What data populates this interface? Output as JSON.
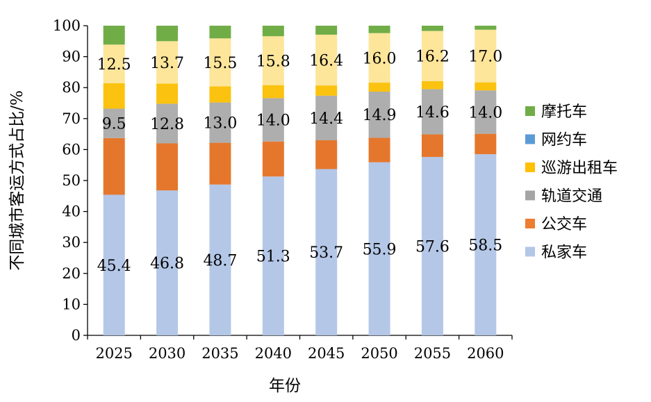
{
  "chart_data": {
    "type": "bar",
    "stacked": true,
    "title": "",
    "xlabel": "年份",
    "ylabel": "不同城市客运方式占比/%",
    "ylim": [
      0,
      100
    ],
    "yticks": [
      0,
      10,
      20,
      30,
      40,
      50,
      60,
      70,
      80,
      90,
      100
    ],
    "categories": [
      "2025",
      "2030",
      "2035",
      "2040",
      "2045",
      "2050",
      "2055",
      "2060"
    ],
    "series": [
      {
        "name": "私家车",
        "color": "#b4c7e7",
        "values": [
          45.4,
          46.8,
          48.7,
          51.3,
          53.7,
          55.9,
          57.6,
          58.5
        ],
        "labels": [
          "45.4",
          "46.8",
          "48.7",
          "51.3",
          "53.7",
          "55.9",
          "57.6",
          "58.5"
        ]
      },
      {
        "name": "公交车",
        "color": "#e5772d",
        "values": [
          18.3,
          15.2,
          13.5,
          11.3,
          9.3,
          7.9,
          7.3,
          6.6
        ]
      },
      {
        "name": "轨道交通",
        "color": "#aeaeae",
        "values": [
          9.5,
          12.8,
          13.0,
          14.0,
          14.4,
          14.9,
          14.6,
          14.0
        ],
        "labels": [
          "9.5",
          "12.8",
          "13.0",
          "14.0",
          "14.4",
          "14.9",
          "14.6",
          "14.0"
        ]
      },
      {
        "name": "巡游出租车",
        "color": "#fbc20f",
        "values": [
          8.2,
          6.5,
          5.2,
          4.2,
          3.3,
          2.9,
          2.6,
          2.6
        ]
      },
      {
        "name": "网约车",
        "color": "#fde59a",
        "values": [
          12.5,
          13.7,
          15.5,
          15.8,
          16.4,
          16.0,
          16.2,
          17.0
        ],
        "labels": [
          "12.5",
          "13.7",
          "15.5",
          "15.8",
          "16.4",
          "16.0",
          "16.2",
          "17.0"
        ]
      },
      {
        "name": "摩托车",
        "color": "#70ad47",
        "values": [
          6.1,
          5.0,
          4.1,
          3.4,
          2.9,
          2.4,
          1.7,
          1.3
        ]
      }
    ],
    "legend": [
      {
        "name": "摩托车",
        "color": "#70ad47"
      },
      {
        "name": "网约车",
        "color": "#5b9bd5"
      },
      {
        "name": "巡游出租车",
        "color": "#ffc000"
      },
      {
        "name": "轨道交通",
        "color": "#a5a5a5"
      },
      {
        "name": "公交车",
        "color": "#ed7d31"
      },
      {
        "name": "私家车",
        "color": "#b4c7e7"
      }
    ],
    "legend_position": "right"
  }
}
